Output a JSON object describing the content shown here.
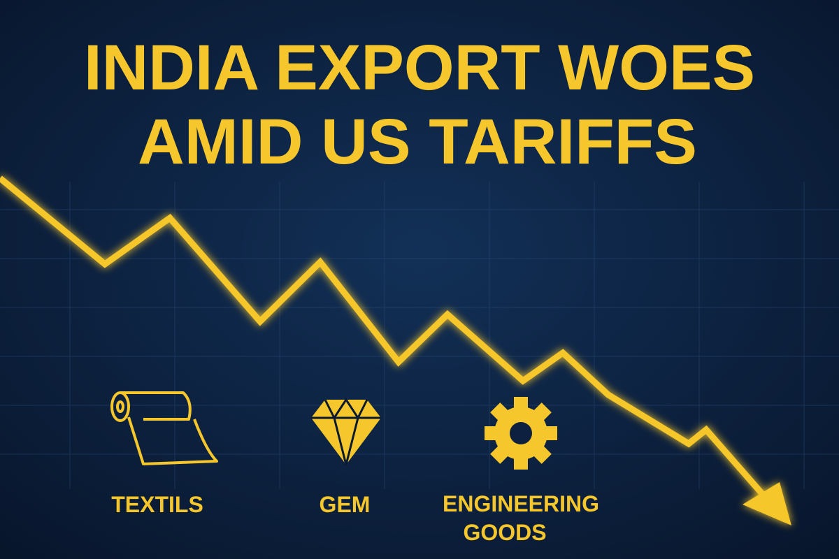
{
  "header": {
    "title_lines": [
      "INDIA EXPORT WOES",
      "AMID US TARIFFS"
    ]
  },
  "sectors": [
    {
      "label_lines": [
        "TEXTILS"
      ]
    },
    {
      "label_lines": [
        "GEM"
      ]
    },
    {
      "label_lines": [
        "ENGINEERING",
        "GOODS"
      ]
    }
  ]
}
